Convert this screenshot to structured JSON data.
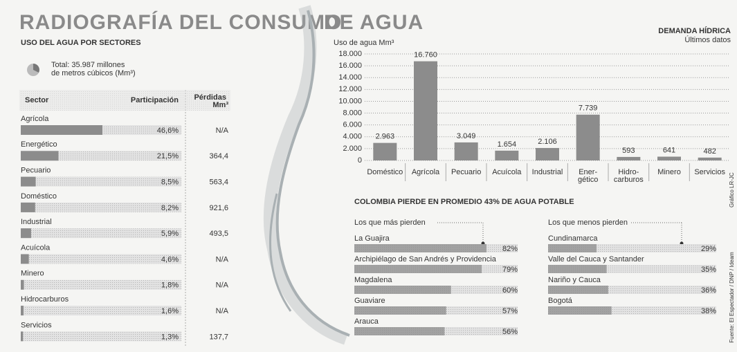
{
  "title_parts": [
    "RADIOGRAFÍA DEL CONSUMO",
    "DE AGUA"
  ],
  "credits": [
    "Gráfico LR-JC",
    "Fuente: El Espectador / DNP / Ideam"
  ],
  "chart_data": [
    {
      "type": "hbar",
      "title": "USO DEL AGUA POR SECTORES",
      "note_lines": [
        "Total: 35.987 millones",
        "de metros cúbicos (Mm³)"
      ],
      "columns": [
        "Sector",
        "Participación",
        "Pérdidas Mm³"
      ],
      "categories": [
        "Agrícola",
        "Energético",
        "Pecuario",
        "Doméstico",
        "Industrial",
        "Acuícola",
        "Minero",
        "Hidrocarburos",
        "Servicios"
      ],
      "values": [
        46.6,
        21.5,
        8.5,
        8.2,
        5.9,
        4.6,
        1.8,
        1.6,
        1.3
      ],
      "value_labels": [
        "46,6%",
        "21,5%",
        "8,5%",
        "8,2%",
        "5,9%",
        "4,6%",
        "1,8%",
        "1,6%",
        "1,3%"
      ],
      "losses": [
        "N/A",
        "364,4",
        "563,4",
        "921,6",
        "493,5",
        "N/A",
        "N/A",
        "N/A",
        "137,7"
      ],
      "color": "#8c8c8c"
    },
    {
      "type": "bar",
      "title": "DEMANDA HÍDRICA",
      "subtitle": "Últimos datos",
      "y_label": "Uso de agua Mm³",
      "categories": [
        "Doméstico",
        "Agrícola",
        "Pecuario",
        "Acuícola",
        "Industrial",
        "Ener-gético",
        "Hidro-carburos",
        "Minero",
        "Servicios"
      ],
      "values": [
        2963,
        16760,
        3049,
        1654,
        2106,
        7739,
        593,
        641,
        482
      ],
      "value_labels": [
        "2.963",
        "16.760",
        "3.049",
        "1.654",
        "2.106",
        "7.739",
        "593",
        "641",
        "482"
      ],
      "ylim": [
        0,
        18000
      ],
      "yticks": [
        0,
        {
          "value": 2000,
          "label": "2.000"
        },
        {
          "value": 4000,
          "label": "4.000"
        },
        {
          "value": 6000,
          "label": "6.000"
        },
        {
          "value": 8000,
          "label": "8.000"
        },
        {
          "value": 10000,
          "label": "10.000"
        },
        {
          "value": 12000,
          "label": "12.000"
        },
        {
          "value": 14000,
          "label": "14.000"
        },
        {
          "value": 16000,
          "label": "16.000"
        },
        {
          "value": 18000,
          "label": "18.000"
        }
      ],
      "grid": true,
      "color": "#8c8c8c"
    },
    {
      "type": "hbar-groups",
      "title": "COLOMBIA PIERDE EN PROMEDIO 43% DE AGUA POTABLE",
      "groups": [
        {
          "name": "Los que más pierden",
          "categories": [
            "La Guajira",
            "Archipiélago de San Andrés y Providencia",
            "Magdalena",
            "Guaviare",
            "Arauca"
          ],
          "values": [
            82,
            79,
            60,
            57,
            56
          ],
          "value_labels": [
            "82%",
            "79%",
            "60%",
            "57%",
            "56%"
          ]
        },
        {
          "name": "Los que menos pierden",
          "categories": [
            "Cundinamarca",
            "Valle del Cauca y Santander",
            "Nariño y Cauca",
            "Bogotá"
          ],
          "values": [
            29,
            35,
            36,
            38
          ],
          "value_labels": [
            "29%",
            "35%",
            "36%",
            "38%"
          ]
        }
      ],
      "color": "#8c8c8c"
    }
  ]
}
